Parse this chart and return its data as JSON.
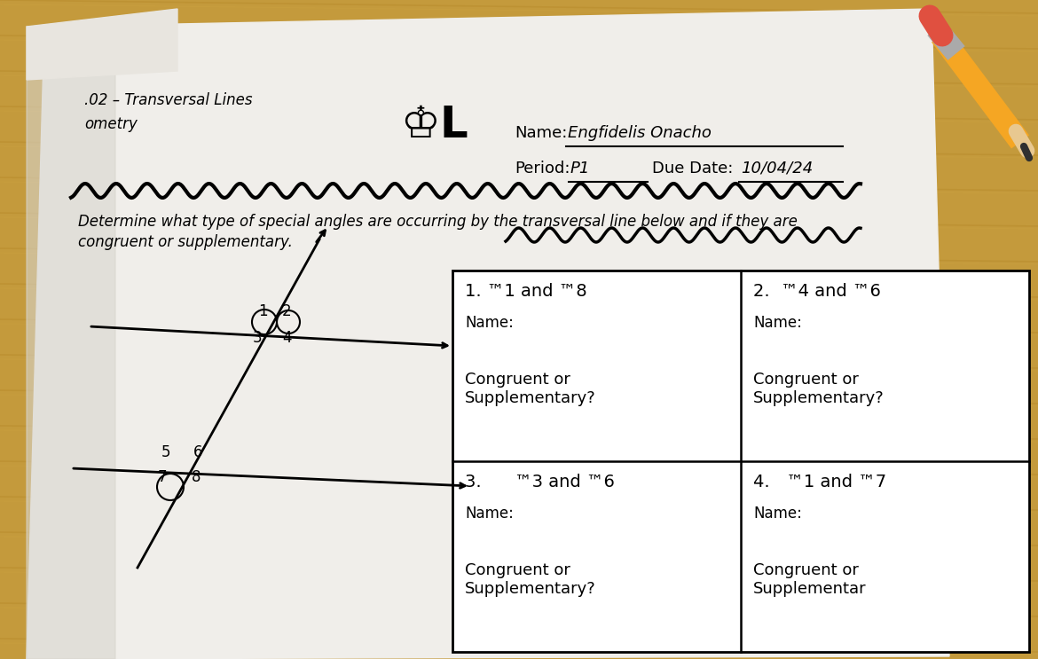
{
  "wood_color": "#c8922a",
  "wood_bg": "#b8832a",
  "paper_color": "#f0eeea",
  "paper_left_color": "#e0ddd8",
  "title_line1": ".02 – Transversal Lines",
  "title_line2": "ometry",
  "name_label": "Name:",
  "name_value": "Engfidelis Onacho",
  "period_label": "Period:",
  "period_value": "P1",
  "due_date_label": "Due Date:",
  "due_date_value": "10/04/24",
  "instruction1": "Determine what type of special angles are occurring by the transversal line below and if they are",
  "instruction2": "congruent or supplementary.",
  "cell1_q": "1. ™1 and ™8",
  "cell1_name": "Name:",
  "cell1_body": "Congruent or\nSupplementary?",
  "cell2_q": "2.  ™4 and ™6",
  "cell2_name": "Name:",
  "cell2_body": "Congruent or\nSupplementary?",
  "cell3_q": "3.      ™3 and ™6",
  "cell3_name": "Name:",
  "cell3_body": "Congruent or\nSupplementary?",
  "cell4_q": "4.   ™1 and ™7",
  "cell4_name": "Name:",
  "cell4_body": "Congruent or\nSupplementar",
  "pencil_yellow": "#f5a623",
  "pencil_eraser": "#e05040",
  "pencil_ferrule": "#aaaaaa"
}
